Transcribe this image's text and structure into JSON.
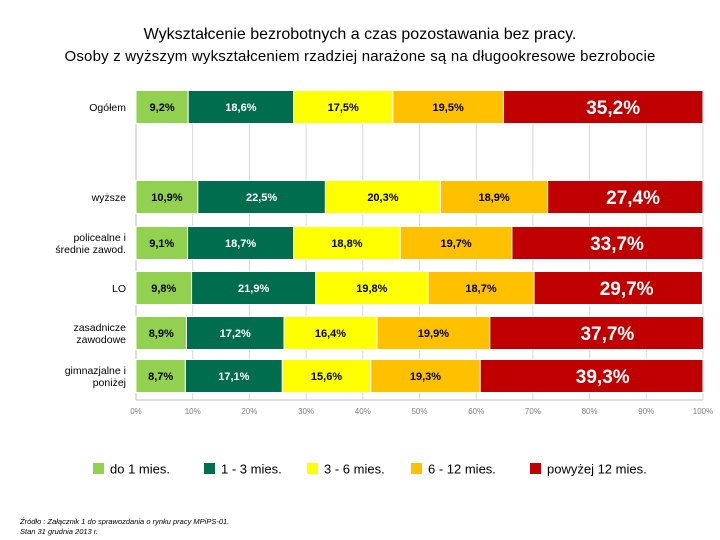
{
  "chart_data": {
    "type": "bar",
    "orientation": "horizontal",
    "stacked": "percent",
    "title": "Wykształcenie bezrobotnych a czas pozostawania bez pracy.",
    "subtitle": "Osoby z wyższym wykształceniem  rzadziej narażone są na długookresowe  bezrobocie",
    "categories": [
      "Ogółem",
      "wyższe",
      "policealne i średnie zawod.",
      "LO",
      "zasadnicze zawodowe",
      "gimnazjalne i poniżej"
    ],
    "category_lines": [
      [
        "Ogółem"
      ],
      [
        "wyższe"
      ],
      [
        "policealne i",
        "średnie zawod."
      ],
      [
        "LO"
      ],
      [
        "zasadnicze",
        "zawodowe"
      ],
      [
        "gimnazjalne i",
        "poniżej"
      ]
    ],
    "series": [
      {
        "name": "do 1 mies.",
        "color": "#92D050",
        "values": [
          9.2,
          10.9,
          9.1,
          9.8,
          8.9,
          8.7
        ],
        "labels": [
          "9,2%",
          "10,9%",
          "9,1%",
          "9,8%",
          "8,9%",
          "8,7%"
        ]
      },
      {
        "name": "1 - 3 mies.",
        "color": "#006E4E",
        "values": [
          18.6,
          22.5,
          18.7,
          21.9,
          17.2,
          17.1
        ],
        "labels": [
          "18,6%",
          "22,5%",
          "18,7%",
          "21,9%",
          "17,2%",
          "17,1%"
        ]
      },
      {
        "name": "3 - 6 mies.",
        "color": "#FFFF00",
        "values": [
          17.5,
          20.3,
          18.8,
          19.8,
          16.4,
          15.6
        ],
        "labels": [
          "17,5%",
          "20,3%",
          "18,8%",
          "19,8%",
          "16,4%",
          "15,6%"
        ]
      },
      {
        "name": "6 - 12 mies.",
        "color": "#FFC000",
        "values": [
          19.5,
          18.9,
          19.7,
          18.7,
          19.9,
          19.3
        ],
        "labels": [
          "19,5%",
          "18,9%",
          "19,7%",
          "18,7%",
          "19,9%",
          "19,3%"
        ]
      },
      {
        "name": "powyżej 12 mies.",
        "color": "#C00000",
        "values": [
          35.2,
          27.4,
          33.7,
          29.7,
          37.7,
          39.3
        ],
        "labels": [
          "35,2%",
          "27,4%",
          "33,7%",
          "29,7%",
          "37,7%",
          "39,3%"
        ]
      }
    ],
    "xlim": [
      0,
      100
    ],
    "x_ticks": [
      "0%",
      "10%",
      "20%",
      "30%",
      "40%",
      "50%",
      "60%",
      "70%",
      "80%",
      "90%",
      "100%"
    ],
    "grid": true,
    "legend_position": "bottom"
  },
  "source": {
    "line1": "Źródło :  Załącznik 1 do sprawozdania o rynku pracy MPiPS-01.",
    "line2": "Stan 31 grudnia 2013 r."
  }
}
